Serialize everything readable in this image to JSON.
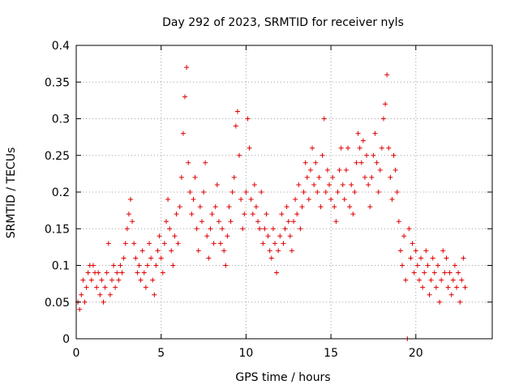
{
  "chart_data": {
    "type": "scatter",
    "title": "Day 292 of 2023, SRMTID for receiver nyls",
    "xlabel": "GPS time / hours",
    "ylabel": "SRMTID / TECUs",
    "xlim": [
      0,
      24.5
    ],
    "ylim": [
      0,
      0.4
    ],
    "x_ticks": [
      "0",
      "5",
      "10",
      "15",
      "20"
    ],
    "x_tick_values": [
      0,
      5,
      10,
      15,
      20
    ],
    "y_ticks": [
      "0",
      "0.05",
      "0.1",
      "0.15",
      "0.2",
      "0.25",
      "0.3",
      "0.35",
      "0.4"
    ],
    "y_tick_values": [
      0,
      0.05,
      0.1,
      0.15,
      0.2,
      0.25,
      0.3,
      0.35,
      0.4
    ],
    "grid": true,
    "marker": "plus",
    "color": "#e00000",
    "series": [
      {
        "points": [
          [
            0.1,
            0.05
          ],
          [
            0.2,
            0.04
          ],
          [
            0.3,
            0.06
          ],
          [
            0.4,
            0.08
          ],
          [
            0.5,
            0.05
          ],
          [
            0.6,
            0.07
          ],
          [
            0.7,
            0.09
          ],
          [
            0.8,
            0.1
          ],
          [
            0.9,
            0.08
          ],
          [
            1.0,
            0.1
          ],
          [
            1.1,
            0.09
          ],
          [
            1.2,
            0.07
          ],
          [
            1.3,
            0.09
          ],
          [
            1.4,
            0.06
          ],
          [
            1.5,
            0.08
          ],
          [
            1.6,
            0.05
          ],
          [
            1.7,
            0.07
          ],
          [
            1.8,
            0.09
          ],
          [
            1.9,
            0.13
          ],
          [
            2.0,
            0.06
          ],
          [
            2.1,
            0.08
          ],
          [
            2.2,
            0.1
          ],
          [
            2.3,
            0.07
          ],
          [
            2.4,
            0.09
          ],
          [
            2.5,
            0.08
          ],
          [
            2.6,
            0.1
          ],
          [
            2.7,
            0.09
          ],
          [
            2.8,
            0.11
          ],
          [
            2.9,
            0.13
          ],
          [
            3.0,
            0.15
          ],
          [
            3.1,
            0.17
          ],
          [
            3.2,
            0.19
          ],
          [
            3.3,
            0.16
          ],
          [
            3.4,
            0.13
          ],
          [
            3.5,
            0.11
          ],
          [
            3.6,
            0.09
          ],
          [
            3.7,
            0.1
          ],
          [
            3.8,
            0.08
          ],
          [
            3.9,
            0.12
          ],
          [
            4.0,
            0.09
          ],
          [
            4.1,
            0.07
          ],
          [
            4.2,
            0.1
          ],
          [
            4.3,
            0.13
          ],
          [
            4.4,
            0.11
          ],
          [
            4.5,
            0.08
          ],
          [
            4.6,
            0.06
          ],
          [
            4.7,
            0.1
          ],
          [
            4.8,
            0.12
          ],
          [
            4.9,
            0.14
          ],
          [
            5.0,
            0.11
          ],
          [
            5.1,
            0.09
          ],
          [
            5.2,
            0.13
          ],
          [
            5.3,
            0.16
          ],
          [
            5.4,
            0.19
          ],
          [
            5.5,
            0.15
          ],
          [
            5.6,
            0.12
          ],
          [
            5.7,
            0.1
          ],
          [
            5.8,
            0.14
          ],
          [
            5.9,
            0.17
          ],
          [
            6.0,
            0.13
          ],
          [
            6.1,
            0.18
          ],
          [
            6.2,
            0.22
          ],
          [
            6.3,
            0.28
          ],
          [
            6.4,
            0.33
          ],
          [
            6.5,
            0.37
          ],
          [
            6.6,
            0.24
          ],
          [
            6.7,
            0.2
          ],
          [
            6.8,
            0.17
          ],
          [
            6.9,
            0.19
          ],
          [
            7.0,
            0.22
          ],
          [
            7.1,
            0.15
          ],
          [
            7.2,
            0.12
          ],
          [
            7.3,
            0.18
          ],
          [
            7.4,
            0.16
          ],
          [
            7.5,
            0.2
          ],
          [
            7.6,
            0.24
          ],
          [
            7.7,
            0.14
          ],
          [
            7.8,
            0.11
          ],
          [
            7.9,
            0.15
          ],
          [
            8.0,
            0.17
          ],
          [
            8.1,
            0.13
          ],
          [
            8.2,
            0.18
          ],
          [
            8.3,
            0.21
          ],
          [
            8.4,
            0.16
          ],
          [
            8.5,
            0.13
          ],
          [
            8.6,
            0.15
          ],
          [
            8.7,
            0.12
          ],
          [
            8.8,
            0.1
          ],
          [
            8.9,
            0.14
          ],
          [
            9.0,
            0.18
          ],
          [
            9.1,
            0.16
          ],
          [
            9.2,
            0.2
          ],
          [
            9.3,
            0.22
          ],
          [
            9.4,
            0.29
          ],
          [
            9.5,
            0.31
          ],
          [
            9.6,
            0.25
          ],
          [
            9.7,
            0.19
          ],
          [
            9.8,
            0.15
          ],
          [
            9.9,
            0.17
          ],
          [
            10.0,
            0.2
          ],
          [
            10.1,
            0.3
          ],
          [
            10.2,
            0.26
          ],
          [
            10.3,
            0.19
          ],
          [
            10.4,
            0.17
          ],
          [
            10.5,
            0.21
          ],
          [
            10.6,
            0.18
          ],
          [
            10.7,
            0.16
          ],
          [
            10.8,
            0.15
          ],
          [
            10.9,
            0.2
          ],
          [
            11.0,
            0.13
          ],
          [
            11.1,
            0.15
          ],
          [
            11.2,
            0.17
          ],
          [
            11.3,
            0.14
          ],
          [
            11.4,
            0.12
          ],
          [
            11.5,
            0.11
          ],
          [
            11.6,
            0.15
          ],
          [
            11.7,
            0.13
          ],
          [
            11.8,
            0.09
          ],
          [
            11.9,
            0.12
          ],
          [
            12.0,
            0.14
          ],
          [
            12.1,
            0.17
          ],
          [
            12.2,
            0.13
          ],
          [
            12.3,
            0.15
          ],
          [
            12.4,
            0.18
          ],
          [
            12.5,
            0.16
          ],
          [
            12.6,
            0.14
          ],
          [
            12.7,
            0.12
          ],
          [
            12.8,
            0.16
          ],
          [
            12.9,
            0.19
          ],
          [
            13.0,
            0.17
          ],
          [
            13.1,
            0.21
          ],
          [
            13.2,
            0.15
          ],
          [
            13.3,
            0.18
          ],
          [
            13.4,
            0.2
          ],
          [
            13.5,
            0.24
          ],
          [
            13.6,
            0.22
          ],
          [
            13.7,
            0.19
          ],
          [
            13.8,
            0.23
          ],
          [
            13.9,
            0.26
          ],
          [
            14.0,
            0.21
          ],
          [
            14.1,
            0.24
          ],
          [
            14.2,
            0.2
          ],
          [
            14.3,
            0.22
          ],
          [
            14.4,
            0.18
          ],
          [
            14.5,
            0.25
          ],
          [
            14.6,
            0.3
          ],
          [
            14.7,
            0.2
          ],
          [
            14.8,
            0.23
          ],
          [
            14.9,
            0.21
          ],
          [
            15.0,
            0.19
          ],
          [
            15.1,
            0.22
          ],
          [
            15.2,
            0.18
          ],
          [
            15.3,
            0.16
          ],
          [
            15.4,
            0.2
          ],
          [
            15.5,
            0.23
          ],
          [
            15.6,
            0.26
          ],
          [
            15.7,
            0.21
          ],
          [
            15.8,
            0.19
          ],
          [
            15.9,
            0.23
          ],
          [
            16.0,
            0.26
          ],
          [
            16.1,
            0.18
          ],
          [
            16.2,
            0.21
          ],
          [
            16.3,
            0.17
          ],
          [
            16.4,
            0.2
          ],
          [
            16.5,
            0.24
          ],
          [
            16.6,
            0.28
          ],
          [
            16.7,
            0.26
          ],
          [
            16.8,
            0.24
          ],
          [
            16.9,
            0.27
          ],
          [
            17.0,
            0.22
          ],
          [
            17.1,
            0.25
          ],
          [
            17.2,
            0.21
          ],
          [
            17.3,
            0.18
          ],
          [
            17.4,
            0.22
          ],
          [
            17.5,
            0.25
          ],
          [
            17.6,
            0.28
          ],
          [
            17.7,
            0.24
          ],
          [
            17.8,
            0.2
          ],
          [
            17.9,
            0.23
          ],
          [
            18.0,
            0.26
          ],
          [
            18.1,
            0.3
          ],
          [
            18.2,
            0.32
          ],
          [
            18.3,
            0.36
          ],
          [
            18.4,
            0.26
          ],
          [
            18.5,
            0.22
          ],
          [
            18.6,
            0.19
          ],
          [
            18.7,
            0.25
          ],
          [
            18.8,
            0.23
          ],
          [
            18.9,
            0.2
          ],
          [
            19.0,
            0.16
          ],
          [
            19.1,
            0.12
          ],
          [
            19.2,
            0.1
          ],
          [
            19.3,
            0.14
          ],
          [
            19.4,
            0.08
          ],
          [
            19.5,
            0.0
          ],
          [
            19.6,
            0.15
          ],
          [
            19.7,
            0.11
          ],
          [
            19.8,
            0.13
          ],
          [
            19.9,
            0.09
          ],
          [
            20.0,
            0.12
          ],
          [
            20.1,
            0.1
          ],
          [
            20.2,
            0.08
          ],
          [
            20.3,
            0.11
          ],
          [
            20.4,
            0.07
          ],
          [
            20.5,
            0.09
          ],
          [
            20.6,
            0.12
          ],
          [
            20.7,
            0.1
          ],
          [
            20.8,
            0.06
          ],
          [
            20.9,
            0.08
          ],
          [
            21.0,
            0.11
          ],
          [
            21.1,
            0.09
          ],
          [
            21.2,
            0.07
          ],
          [
            21.3,
            0.1
          ],
          [
            21.4,
            0.05
          ],
          [
            21.5,
            0.08
          ],
          [
            21.6,
            0.12
          ],
          [
            21.7,
            0.09
          ],
          [
            21.8,
            0.11
          ],
          [
            21.9,
            0.07
          ],
          [
            22.0,
            0.09
          ],
          [
            22.1,
            0.06
          ],
          [
            22.2,
            0.08
          ],
          [
            22.3,
            0.1
          ],
          [
            22.4,
            0.07
          ],
          [
            22.5,
            0.09
          ],
          [
            22.6,
            0.05
          ],
          [
            22.7,
            0.08
          ],
          [
            22.8,
            0.11
          ],
          [
            22.9,
            0.07
          ]
        ]
      }
    ]
  }
}
